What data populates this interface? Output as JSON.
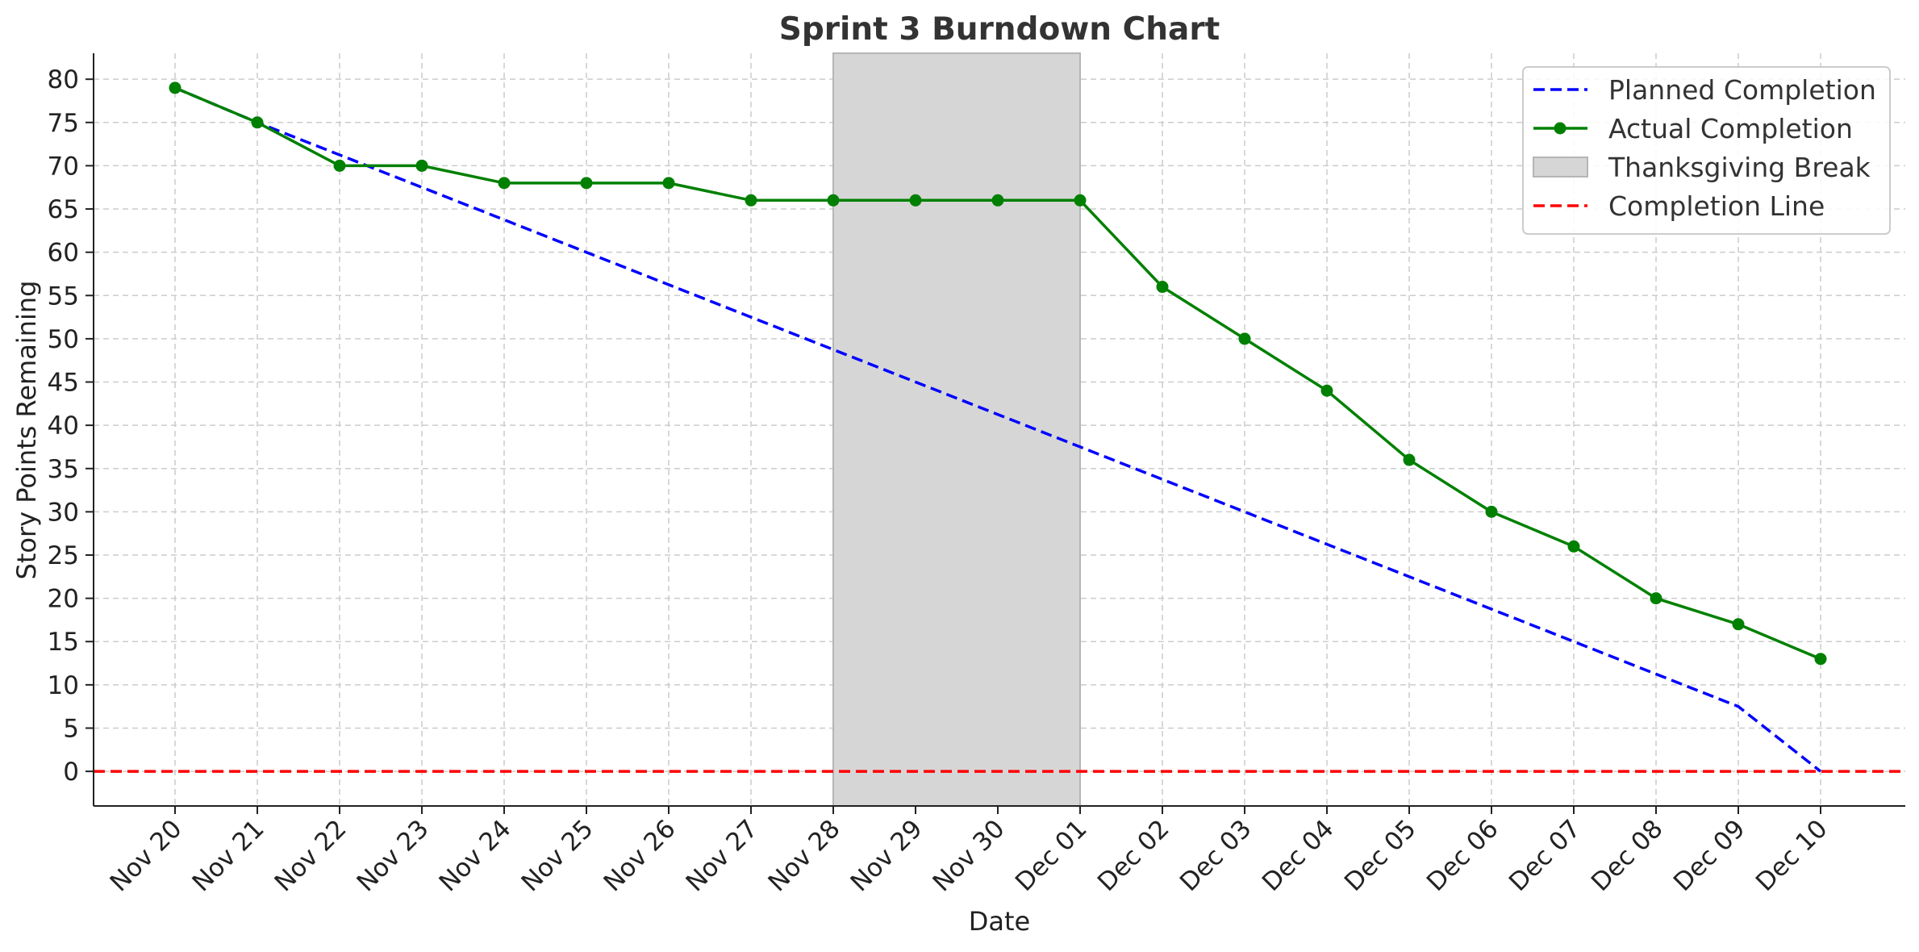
{
  "chart_data": {
    "type": "line",
    "title": "Sprint 3 Burndown Chart",
    "xlabel": "Date",
    "ylabel": "Story Points Remaining",
    "categories": [
      "Nov 20",
      "Nov 21",
      "Nov 22",
      "Nov 23",
      "Nov 24",
      "Nov 25",
      "Nov 26",
      "Nov 27",
      "Nov 28",
      "Nov 29",
      "Nov 30",
      "Dec 01",
      "Dec 02",
      "Dec 03",
      "Dec 04",
      "Dec 05",
      "Dec 06",
      "Dec 07",
      "Dec 08",
      "Dec 09",
      "Dec 10"
    ],
    "ylim": [
      -4,
      83
    ],
    "yticks": [
      0,
      5,
      10,
      15,
      20,
      25,
      30,
      35,
      40,
      45,
      50,
      55,
      60,
      65,
      70,
      75,
      80
    ],
    "grid": true,
    "legend_position": "top-right",
    "series": [
      {
        "name": "Planned Completion",
        "style": "dashed",
        "color": "#0000ff",
        "values": [
          79,
          75,
          71.25,
          67.5,
          63.75,
          60,
          56.25,
          52.5,
          48.75,
          45,
          41.25,
          37.5,
          33.75,
          30,
          26.25,
          22.5,
          18.75,
          15,
          11.25,
          7.5,
          0
        ],
        "x_index": [
          0,
          1,
          2,
          3,
          4,
          5,
          6,
          7,
          8,
          9,
          10,
          11,
          12,
          13,
          14,
          15,
          16,
          17,
          18,
          19,
          20
        ]
      },
      {
        "name": "Actual Completion",
        "style": "solid-markers",
        "color": "#008000",
        "values": [
          79,
          75,
          70,
          70,
          68,
          68,
          68,
          66,
          66,
          66,
          66,
          66,
          56,
          50,
          44,
          36,
          30,
          26,
          20,
          17,
          13
        ]
      }
    ],
    "shaded_region": {
      "name": "Thanksgiving Break",
      "from": "Nov 28",
      "to": "Dec 01",
      "color": "#d6d6d6"
    },
    "reference_line": {
      "name": "Completion Line",
      "y": 0,
      "style": "dashed",
      "color": "#ff0000"
    }
  }
}
